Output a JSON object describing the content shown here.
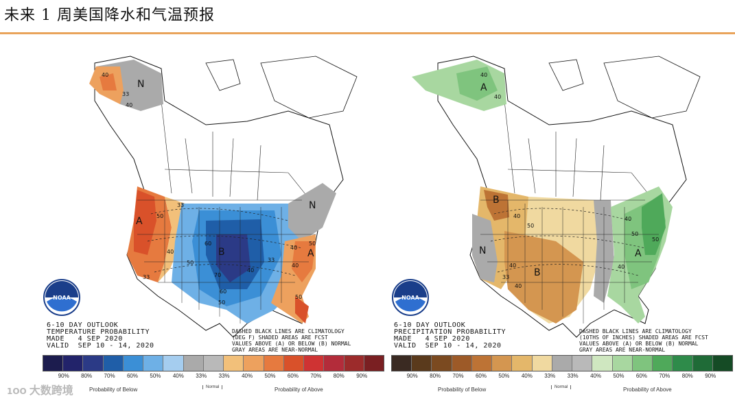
{
  "page": {
    "title": "未来 1 周美国降水和气温预报",
    "watermark": "大数跨境",
    "watermark_logo_text": "1OO"
  },
  "chart_data": [
    {
      "type": "map",
      "panel": "temperature",
      "title": "6-10 DAY OUTLOOK",
      "subtitle": "TEMPERATURE PROBABILITY",
      "made": "MADE   4 SEP 2020",
      "valid": "VALID  SEP 10 - 14, 2020",
      "note": [
        "DASHED BLACK LINES ARE CLIMATOLOGY",
        "(DEG F) SHADED AREAS ARE FCST",
        "VALUES ABOVE (A) OR BELOW (B) NORMAL",
        "GRAY AREAS ARE NEAR-NORMAL"
      ],
      "regions": [
        {
          "label": "A",
          "category": "above",
          "prob": 60,
          "region": "West Coast"
        },
        {
          "label": "B",
          "category": "below",
          "prob": 70,
          "region": "Central Plains"
        },
        {
          "label": "N",
          "category": "near-normal",
          "prob": 33,
          "region": "Northern Alaska"
        },
        {
          "label": "N",
          "category": "near-normal",
          "prob": 33,
          "region": "Northeast"
        },
        {
          "label": "A",
          "category": "above",
          "prob": 50,
          "region": "Southeast"
        }
      ],
      "contour_labels": [
        "40",
        "33",
        "40",
        "50",
        "33",
        "40",
        "50",
        "60",
        "70",
        "60",
        "50",
        "40",
        "33",
        "40",
        "50",
        "40",
        "50",
        "33"
      ],
      "legend": {
        "colors": [
          "#1c1c4e",
          "#22236a",
          "#2b3a86",
          "#1f5ea8",
          "#3b8fd6",
          "#6eb0e6",
          "#a5cdef",
          "#aaaaaa",
          "#b9b9b9",
          "#f2c07a",
          "#eda15e",
          "#e67a3f",
          "#d9512a",
          "#cf3333",
          "#b32c3a",
          "#9c2b2b",
          "#7a1f22"
        ],
        "ticks": [
          "90%",
          "80%",
          "70%",
          "60%",
          "50%",
          "40%",
          "33%",
          "33%",
          "40%",
          "50%",
          "60%",
          "70%",
          "80%",
          "90%"
        ],
        "below_caption": "Probability of Below",
        "normal_caption": "Normal",
        "above_caption": "Probability of Above"
      }
    },
    {
      "type": "map",
      "panel": "precipitation",
      "title": "6-10 DAY OUTLOOK",
      "subtitle": "PRECIPITATION PROBABILITY",
      "made": "MADE   4 SEP 2020",
      "valid": "VALID  SEP 10 - 14, 2020",
      "note": [
        "DASHED BLACK LINES ARE CLIMATOLOGY",
        "(10THS OF INCHES) SHADED AREAS ARE FCST",
        "VALUES ABOVE (A) OR BELOW (B) NORMAL",
        "GRAY AREAS ARE NEAR-NORMAL"
      ],
      "regions": [
        {
          "label": "A",
          "category": "above",
          "prob": 40,
          "region": "Alaska"
        },
        {
          "label": "B",
          "category": "below",
          "prob": 50,
          "region": "Pacific Northwest"
        },
        {
          "label": "N",
          "category": "near-normal",
          "prob": 33,
          "region": "Great Basin"
        },
        {
          "label": "B",
          "category": "below",
          "prob": 50,
          "region": "Southern Plains"
        },
        {
          "label": "A",
          "category": "above",
          "prob": 60,
          "region": "East Coast"
        }
      ],
      "contour_labels": [
        "40",
        "40",
        "40",
        "50",
        "40",
        "40",
        "33",
        "40",
        "50",
        "50",
        "40"
      ],
      "legend": {
        "colors": [
          "#3a2a22",
          "#5a3a1c",
          "#7b4a20",
          "#9d5a28",
          "#bd7335",
          "#d49650",
          "#e4b76a",
          "#f0d9a0",
          "#aaaaaa",
          "#b9b9b9",
          "#cfe7c0",
          "#a8d7a0",
          "#7fc47e",
          "#4fa95a",
          "#2e8b4a",
          "#1f6b37",
          "#154b25"
        ],
        "ticks": [
          "90%",
          "80%",
          "70%",
          "60%",
          "50%",
          "40%",
          "33%",
          "33%",
          "40%",
          "50%",
          "60%",
          "70%",
          "80%",
          "90%"
        ],
        "below_caption": "Probability of Below",
        "normal_caption": "Normal",
        "above_caption": "Probability of Above"
      }
    }
  ]
}
